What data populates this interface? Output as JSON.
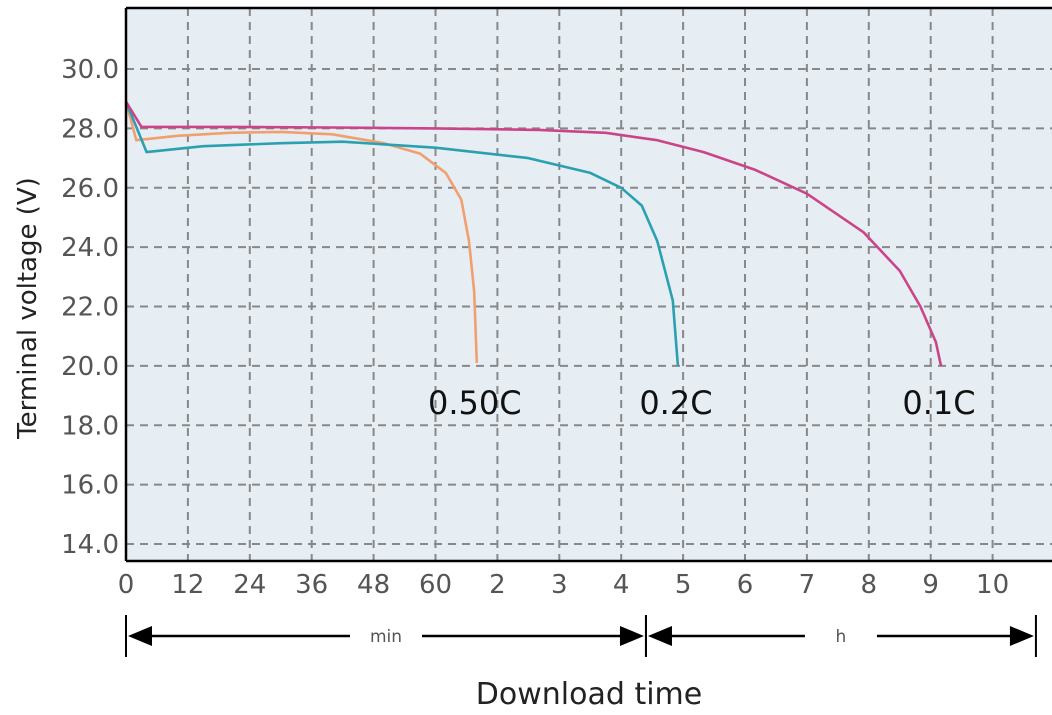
{
  "chart_data": {
    "type": "line",
    "title": "",
    "xlabel": "Download time",
    "ylabel": "Terminal voltage (V)",
    "ylim": [
      13.0,
      32.0
    ],
    "yticks": [
      "14.0",
      "16.0",
      "18.0",
      "20.0",
      "22.0",
      "24.0",
      "26.0",
      "28.0",
      "30.0"
    ],
    "xticks": [
      "0",
      "12",
      "24",
      "36",
      "48",
      "60",
      "2",
      "3",
      "4",
      "5",
      "6",
      "7",
      "8",
      "9",
      "10"
    ],
    "x_ranges": [
      {
        "label": "min",
        "from": "0",
        "to": "4.4"
      },
      {
        "label": "h",
        "from": "4.4",
        "to": "10.6"
      }
    ],
    "grid": true,
    "series": [
      {
        "name": "0.50C",
        "color": "#f0a070",
        "points": [
          [
            0,
            28.9
          ],
          [
            2,
            27.6
          ],
          [
            10,
            27.75
          ],
          [
            20,
            27.85
          ],
          [
            30,
            27.88
          ],
          [
            40,
            27.8
          ],
          [
            50,
            27.5
          ],
          [
            57,
            27.15
          ],
          [
            62,
            26.5
          ],
          [
            65,
            25.6
          ],
          [
            66.5,
            24.2
          ],
          [
            67.5,
            22.5
          ],
          [
            68,
            20.1
          ]
        ]
      },
      {
        "name": "0.2C",
        "color": "#2aa0b0",
        "points": [
          [
            0,
            28.9
          ],
          [
            4,
            27.2
          ],
          [
            15,
            27.4
          ],
          [
            30,
            27.5
          ],
          [
            42,
            27.55
          ],
          [
            60,
            27.35
          ],
          [
            78,
            27.0
          ],
          [
            90,
            26.5
          ],
          [
            96,
            26.0
          ],
          [
            100,
            25.4
          ],
          [
            103,
            24.2
          ],
          [
            106,
            22.2
          ],
          [
            107,
            20.0
          ]
        ]
      },
      {
        "name": "0.1C",
        "color": "#cc4488",
        "points": [
          [
            0,
            28.9
          ],
          [
            3,
            28.05
          ],
          [
            20,
            28.05
          ],
          [
            40,
            28.03
          ],
          [
            60,
            28.0
          ],
          [
            80,
            27.95
          ],
          [
            93,
            27.85
          ],
          [
            103,
            27.6
          ],
          [
            112,
            27.2
          ],
          [
            122,
            26.6
          ],
          [
            132,
            25.8
          ],
          [
            143,
            24.5
          ],
          [
            150,
            23.2
          ],
          [
            154,
            22.0
          ],
          [
            157,
            20.8
          ],
          [
            158,
            20.0
          ]
        ]
      }
    ]
  }
}
